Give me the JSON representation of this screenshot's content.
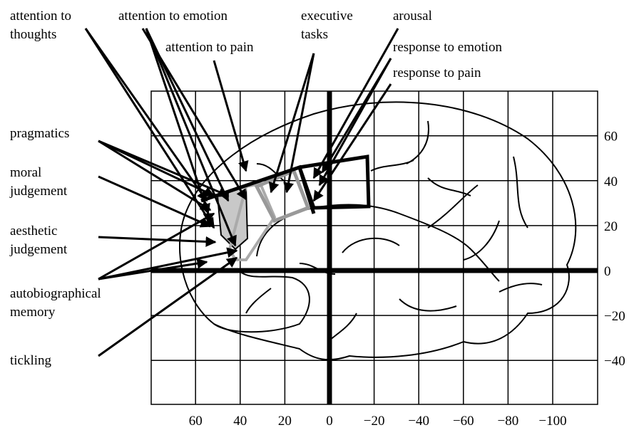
{
  "labels": [
    {
      "lines": [
        "attention to",
        "thoughts"
      ]
    },
    {
      "lines": [
        "attention to emotion"
      ]
    },
    {
      "lines": [
        "attention to pain"
      ]
    },
    {
      "lines": [
        "executive",
        "tasks"
      ]
    },
    {
      "lines": [
        "arousal"
      ]
    },
    {
      "lines": [
        "response to emotion"
      ]
    },
    {
      "lines": [
        "response to pain"
      ]
    },
    {
      "lines": [
        "pragmatics"
      ]
    },
    {
      "lines": [
        "moral",
        "judgement"
      ]
    },
    {
      "lines": [
        "aesthetic",
        "judgement"
      ]
    },
    {
      "lines": [
        "autobiographical",
        "memory"
      ]
    },
    {
      "lines": [
        "tickling"
      ]
    }
  ],
  "axes": {
    "xticks": [
      60,
      40,
      20,
      0,
      {
        "value": -20,
        "label": "−20"
      },
      {
        "value": -40,
        "label": "−40"
      },
      {
        "value": -60,
        "label": "−60"
      },
      {
        "value": -80,
        "label": "−80"
      },
      {
        "value": -100,
        "label": "−100"
      }
    ],
    "yticks": [
      60,
      40,
      20,
      0,
      {
        "value": -20,
        "label": "−20"
      },
      {
        "value": -40,
        "label": "−40"
      }
    ]
  }
}
